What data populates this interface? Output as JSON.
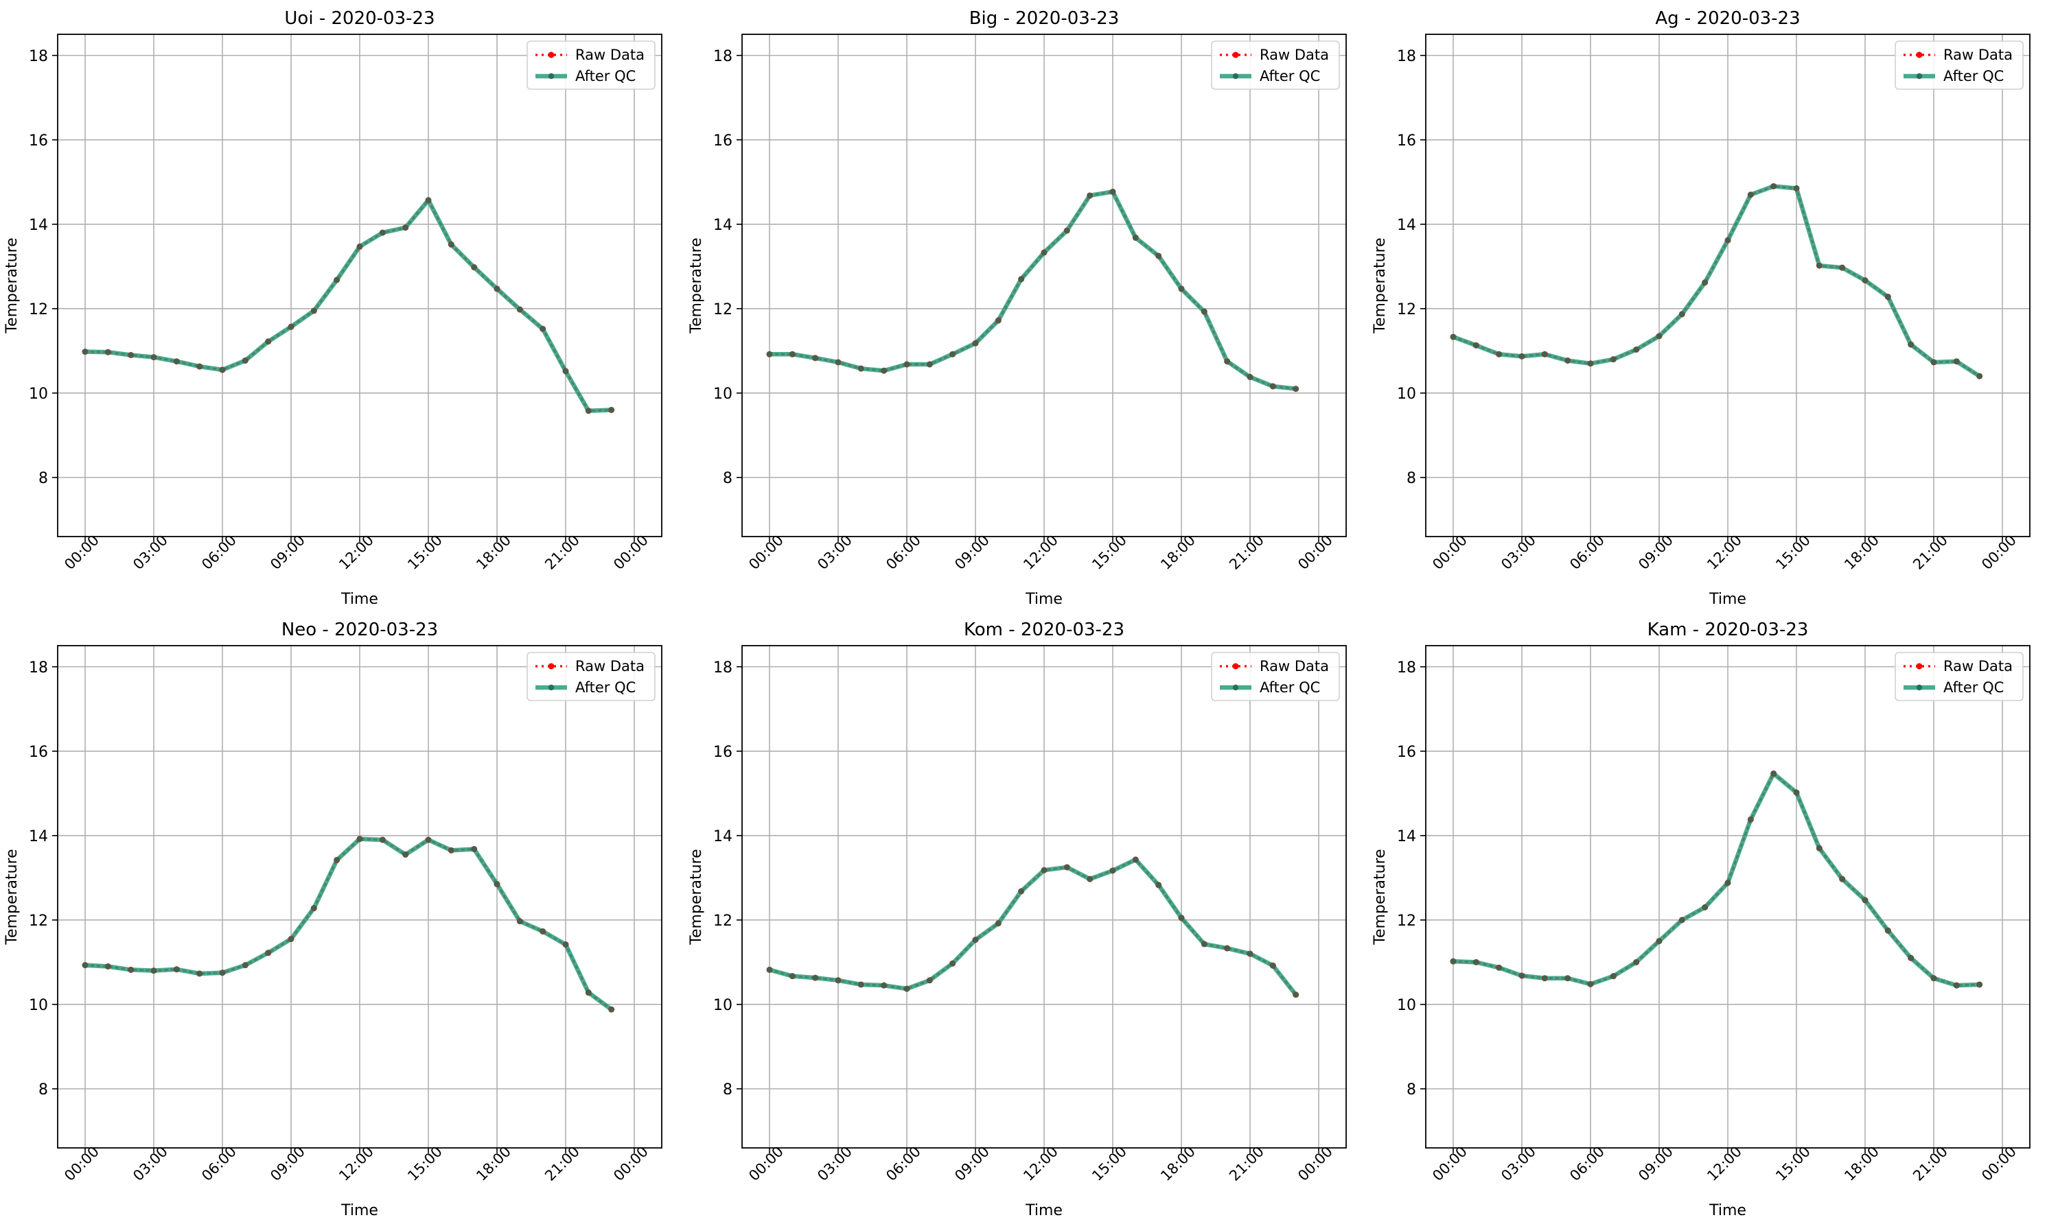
{
  "chart_data": [
    {
      "type": "line",
      "title": "Uoi - 2020-03-23",
      "xlabel": "Time",
      "ylabel": "Temperature",
      "x_ticks": [
        "00:00",
        "03:00",
        "06:00",
        "09:00",
        "12:00",
        "15:00",
        "18:00",
        "21:00",
        "00:00"
      ],
      "y_ticks": [
        "8",
        "10",
        "12",
        "14",
        "16",
        "18"
      ],
      "ylim": [
        6.6,
        18.5
      ],
      "grid": true,
      "legend_position": "top-right",
      "legend": [
        "Raw Data",
        "After QC"
      ],
      "series": [
        {
          "name": "Raw Data",
          "color": "#ff0000",
          "values": [
            10.98,
            10.97,
            10.9,
            10.85,
            10.75,
            10.63,
            10.55,
            10.77,
            11.22,
            11.57,
            11.95,
            12.68,
            13.47,
            13.8,
            13.92,
            14.57,
            13.52,
            12.98,
            12.47,
            11.98,
            11.52,
            10.52,
            9.58,
            9.6
          ]
        },
        {
          "name": "After QC",
          "color": "#2a9d7c",
          "values": [
            10.98,
            10.97,
            10.9,
            10.85,
            10.75,
            10.63,
            10.55,
            10.77,
            11.22,
            11.57,
            11.95,
            12.68,
            13.47,
            13.8,
            13.92,
            14.57,
            13.52,
            12.98,
            12.47,
            11.98,
            11.52,
            10.52,
            9.58,
            9.6
          ]
        }
      ]
    },
    {
      "type": "line",
      "title": "Big - 2020-03-23",
      "xlabel": "Time",
      "ylabel": "Temperature",
      "x_ticks": [
        "00:00",
        "03:00",
        "06:00",
        "09:00",
        "12:00",
        "15:00",
        "18:00",
        "21:00",
        "00:00"
      ],
      "y_ticks": [
        "8",
        "10",
        "12",
        "14",
        "16",
        "18"
      ],
      "ylim": [
        6.6,
        18.5
      ],
      "grid": true,
      "legend_position": "top-right",
      "legend": [
        "Raw Data",
        "After QC"
      ],
      "series": [
        {
          "name": "Raw Data",
          "color": "#ff0000",
          "values": [
            10.92,
            10.92,
            10.83,
            10.73,
            10.58,
            10.53,
            10.68,
            10.68,
            10.92,
            11.18,
            11.72,
            12.7,
            13.33,
            13.85,
            14.68,
            14.77,
            13.68,
            13.25,
            12.47,
            11.93,
            10.75,
            10.38,
            10.16,
            10.1
          ]
        },
        {
          "name": "After QC",
          "color": "#2a9d7c",
          "values": [
            10.92,
            10.92,
            10.83,
            10.73,
            10.58,
            10.53,
            10.68,
            10.68,
            10.92,
            11.18,
            11.72,
            12.7,
            13.33,
            13.85,
            14.68,
            14.77,
            13.68,
            13.25,
            12.47,
            11.93,
            10.75,
            10.38,
            10.16,
            10.1
          ]
        }
      ]
    },
    {
      "type": "line",
      "title": "Ag - 2020-03-23",
      "xlabel": "Time",
      "ylabel": "Temperature",
      "x_ticks": [
        "00:00",
        "03:00",
        "06:00",
        "09:00",
        "12:00",
        "15:00",
        "18:00",
        "21:00",
        "00:00"
      ],
      "y_ticks": [
        "8",
        "10",
        "12",
        "14",
        "16",
        "18"
      ],
      "ylim": [
        6.6,
        18.5
      ],
      "grid": true,
      "legend_position": "top-right",
      "legend": [
        "Raw Data",
        "After QC"
      ],
      "series": [
        {
          "name": "Raw Data",
          "color": "#ff0000",
          "values": [
            11.33,
            11.13,
            10.92,
            10.87,
            10.92,
            10.77,
            10.7,
            10.8,
            11.03,
            11.35,
            11.87,
            12.62,
            13.62,
            14.7,
            14.9,
            14.85,
            13.02,
            12.97,
            12.67,
            12.28,
            11.15,
            10.73,
            10.75,
            10.4
          ]
        },
        {
          "name": "After QC",
          "color": "#2a9d7c",
          "values": [
            11.33,
            11.13,
            10.92,
            10.87,
            10.92,
            10.77,
            10.7,
            10.8,
            11.03,
            11.35,
            11.87,
            12.62,
            13.62,
            14.7,
            14.9,
            14.85,
            13.02,
            12.97,
            12.67,
            12.28,
            11.15,
            10.73,
            10.75,
            10.4
          ]
        }
      ]
    },
    {
      "type": "line",
      "title": "Neo - 2020-03-23",
      "xlabel": "Time",
      "ylabel": "Temperature",
      "x_ticks": [
        "00:00",
        "03:00",
        "06:00",
        "09:00",
        "12:00",
        "15:00",
        "18:00",
        "21:00",
        "00:00"
      ],
      "y_ticks": [
        "8",
        "10",
        "12",
        "14",
        "16",
        "18"
      ],
      "ylim": [
        6.6,
        18.5
      ],
      "grid": true,
      "legend_position": "top-right",
      "legend": [
        "Raw Data",
        "After QC"
      ],
      "series": [
        {
          "name": "Raw Data",
          "color": "#ff0000",
          "values": [
            10.93,
            10.9,
            10.82,
            10.8,
            10.83,
            10.73,
            10.75,
            10.93,
            11.22,
            11.55,
            12.28,
            13.42,
            13.92,
            13.9,
            13.55,
            13.9,
            13.65,
            13.68,
            12.85,
            11.97,
            11.73,
            11.42,
            10.28,
            9.88
          ]
        },
        {
          "name": "After QC",
          "color": "#2a9d7c",
          "values": [
            10.93,
            10.9,
            10.82,
            10.8,
            10.83,
            10.73,
            10.75,
            10.93,
            11.22,
            11.55,
            12.28,
            13.42,
            13.92,
            13.9,
            13.55,
            13.9,
            13.65,
            13.68,
            12.85,
            11.97,
            11.73,
            11.42,
            10.28,
            9.88
          ]
        }
      ]
    },
    {
      "type": "line",
      "title": "Kom - 2020-03-23",
      "xlabel": "Time",
      "ylabel": "Temperature",
      "x_ticks": [
        "00:00",
        "03:00",
        "06:00",
        "09:00",
        "12:00",
        "15:00",
        "18:00",
        "21:00",
        "00:00"
      ],
      "y_ticks": [
        "8",
        "10",
        "12",
        "14",
        "16",
        "18"
      ],
      "ylim": [
        6.6,
        18.5
      ],
      "grid": true,
      "legend_position": "top-right",
      "legend": [
        "Raw Data",
        "After QC"
      ],
      "series": [
        {
          "name": "Raw Data",
          "color": "#ff0000",
          "values": [
            10.82,
            10.67,
            10.63,
            10.57,
            10.47,
            10.45,
            10.37,
            10.57,
            10.97,
            11.53,
            11.92,
            12.68,
            13.18,
            13.25,
            12.97,
            13.17,
            13.43,
            12.83,
            12.05,
            11.43,
            11.33,
            11.2,
            10.92,
            10.23
          ]
        },
        {
          "name": "After QC",
          "color": "#2a9d7c",
          "values": [
            10.82,
            10.67,
            10.63,
            10.57,
            10.47,
            10.45,
            10.37,
            10.57,
            10.97,
            11.53,
            11.92,
            12.68,
            13.18,
            13.25,
            12.97,
            13.17,
            13.43,
            12.83,
            12.05,
            11.43,
            11.33,
            11.2,
            10.92,
            10.23
          ]
        }
      ]
    },
    {
      "type": "line",
      "title": "Kam - 2020-03-23",
      "xlabel": "Time",
      "ylabel": "Temperature",
      "x_ticks": [
        "00:00",
        "03:00",
        "06:00",
        "09:00",
        "12:00",
        "15:00",
        "18:00",
        "21:00",
        "00:00"
      ],
      "y_ticks": [
        "8",
        "10",
        "12",
        "14",
        "16",
        "18"
      ],
      "ylim": [
        6.6,
        18.5
      ],
      "grid": true,
      "legend_position": "top-right",
      "legend": [
        "Raw Data",
        "After QC"
      ],
      "series": [
        {
          "name": "Raw Data",
          "color": "#ff0000",
          "values": [
            11.02,
            11.0,
            10.87,
            10.68,
            10.62,
            10.62,
            10.48,
            10.67,
            11.0,
            11.5,
            12.0,
            12.3,
            12.88,
            14.38,
            15.47,
            15.02,
            13.7,
            12.97,
            12.47,
            11.75,
            11.1,
            10.62,
            10.45,
            10.47
          ]
        },
        {
          "name": "After QC",
          "color": "#2a9d7c",
          "values": [
            11.02,
            11.0,
            10.87,
            10.68,
            10.62,
            10.62,
            10.48,
            10.67,
            11.0,
            11.5,
            12.0,
            12.3,
            12.88,
            14.38,
            15.47,
            15.02,
            13.7,
            12.97,
            12.47,
            11.75,
            11.1,
            10.62,
            10.45,
            10.47
          ]
        }
      ]
    }
  ]
}
